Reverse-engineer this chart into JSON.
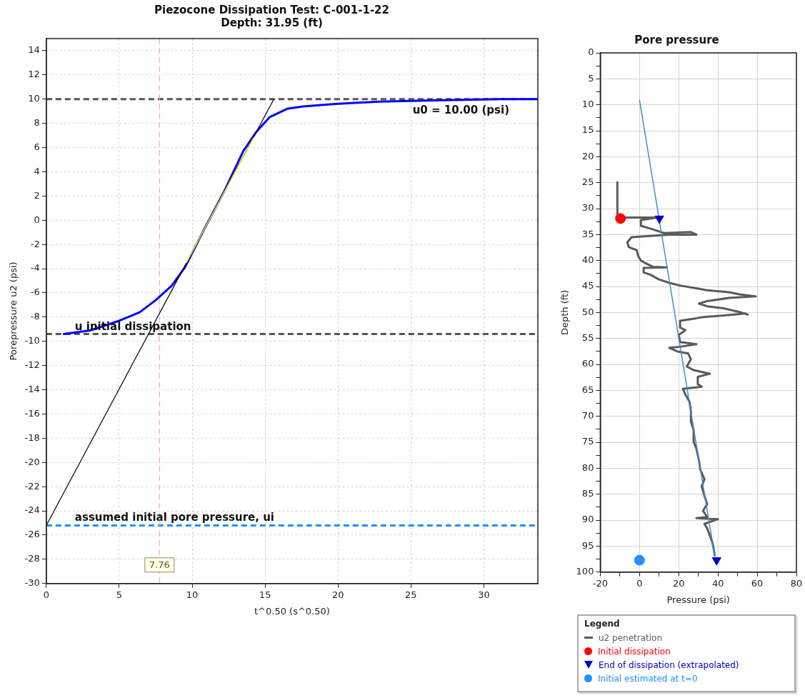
{
  "chart_data": [
    {
      "type": "line",
      "title": "Piezocone Dissipation Test: C-001-1-22",
      "subtitle": "Depth: 31.95 (ft)",
      "xlabel": "t^0.50 (s^0.50)",
      "ylabel": "Porepressure u2 (psi)",
      "xlim": [
        0,
        33.7
      ],
      "xticks": [
        0,
        5,
        10,
        15,
        20,
        25,
        30
      ],
      "ylim": [
        -30,
        15
      ],
      "yticks": [
        -30,
        -28,
        -26,
        -24,
        -22,
        -20,
        -18,
        -16,
        -14,
        -12,
        -10,
        -8,
        -6,
        -4,
        -2,
        0,
        2,
        4,
        6,
        8,
        10,
        12,
        14
      ],
      "grid": true,
      "marker": "none",
      "series": [
        {
          "color": "#0000ff",
          "x": [
            1.2,
            3.0,
            5.0,
            6.4,
            7.5,
            8.6,
            9.5,
            10.8,
            12.2,
            13.5,
            14.4,
            15.3,
            16.5,
            17.6,
            19.8,
            22.8,
            26.6,
            31.1,
            33.7
          ],
          "values": [
            -9.4,
            -9.1,
            -8.3,
            -7.6,
            -6.6,
            -5.4,
            -3.9,
            -0.8,
            2.4,
            5.7,
            7.3,
            8.5,
            9.2,
            9.4,
            9.6,
            9.8,
            9.9,
            10.0,
            10.0
          ]
        },
        {
          "color": "#000000",
          "x": [
            0,
            15.6
          ],
          "values": [
            -25.2,
            10.0
          ]
        },
        {
          "color": "#e6e600",
          "x": [
            9.6,
            14.2
          ],
          "values": [
            -3.5,
            6.8
          ]
        }
      ],
      "ref_lines": [
        {
          "axis": "y",
          "value": 10,
          "label": "u0 = 10.00 (psi)",
          "color": "#555555",
          "line_style": "dashed"
        },
        {
          "axis": "y",
          "value": -9.4,
          "label": "u initial dissipation",
          "color": "#555555",
          "line_style": "dashed"
        },
        {
          "axis": "y",
          "value": -25.2,
          "label": "assumed initial pore pressure, ui",
          "color": "#1e90ff",
          "line_style": "dashed"
        },
        {
          "axis": "x",
          "value": 7.76,
          "label": "7.76",
          "color": "#e8a0a0",
          "line_style": "dashed"
        }
      ]
    },
    {
      "type": "line",
      "title": "Pore pressure",
      "xlabel": "Pressure (psi)",
      "ylabel": "Depth (ft)",
      "legend": "bottom",
      "legend_title": "Legend",
      "xlim": [
        -20,
        80
      ],
      "xticks": [
        -20,
        {
          "value": -10,
          "label": null
        },
        0,
        {
          "value": 10,
          "label": null
        },
        20,
        {
          "value": 30,
          "label": null
        },
        40,
        {
          "value": 50,
          "label": null
        },
        60,
        {
          "value": 70,
          "label": null
        },
        80
      ],
      "ylim": [
        100,
        0
      ],
      "yticks": [
        0,
        {
          "value": 2.5,
          "label": null
        },
        5,
        {
          "value": 7.5,
          "label": null
        },
        10,
        {
          "value": 12.5,
          "label": null
        },
        15,
        {
          "value": 17.5,
          "label": null
        },
        20,
        {
          "value": 22.5,
          "label": null
        },
        25,
        {
          "value": 27.5,
          "label": null
        },
        30,
        {
          "value": 32.5,
          "label": null
        },
        35,
        {
          "value": 37.5,
          "label": null
        },
        40,
        {
          "value": 42.5,
          "label": null
        },
        45,
        {
          "value": 47.5,
          "label": null
        },
        50,
        {
          "value": 52.5,
          "label": null
        },
        55,
        {
          "value": 57.5,
          "label": null
        },
        60,
        {
          "value": 62.5,
          "label": null
        },
        65,
        {
          "value": 67.5,
          "label": null
        },
        70,
        {
          "value": 72.5,
          "label": null
        },
        75,
        {
          "value": 77.5,
          "label": null
        },
        80,
        {
          "value": 82.5,
          "label": null
        },
        85,
        {
          "value": 87.5,
          "label": null
        },
        90,
        {
          "value": 92.5,
          "label": null
        },
        95,
        {
          "value": 97.5,
          "label": null
        },
        100
      ],
      "grid": true,
      "series": [
        {
          "name": "u2 penetration",
          "color": "#5a5a5a",
          "marker": "none",
          "x": [
            -11.3,
            -11.3,
            9.0,
            0.7,
            0.7,
            6.9,
            12.4,
            26.2,
            29.0,
            15.2,
            -4.1,
            -6.2,
            -5.5,
            -1.4,
            -0.7,
            0.7,
            4.1,
            6.9,
            13.8,
            2.1,
            2.1,
            5.5,
            9.7,
            15.2,
            20.7,
            34.5,
            45.5,
            51.0,
            59.3,
            45.5,
            34.5,
            30.3,
            34.5,
            42.8,
            51.0,
            55.2,
            53.8,
            45.5,
            31.7,
            29.0,
            20.7,
            20.7,
            23.4,
            20.0,
            20.7,
            29.0,
            20.7,
            15.2,
            19.3,
            24.8,
            26.2,
            24.1,
            27.6,
            35.9,
            29.7,
            29.7,
            31.7,
            22.1,
            23.4,
            25.5,
            26.2,
            26.2,
            27.6,
            27.6,
            29.0,
            30.3,
            31.0,
            33.1,
            31.7,
            33.1,
            34.5,
            32.4,
            34.5,
            29.0,
            40.0,
            33.1,
            34.5,
            35.9,
            37.2,
            37.9,
            38.3
          ],
          "values": [
            24.9,
            31.7,
            31.7,
            32.2,
            33.3,
            34.0,
            34.7,
            34.5,
            35.0,
            35.0,
            35.5,
            36.5,
            37.4,
            38.0,
            39.1,
            40.0,
            40.7,
            41.2,
            41.3,
            41.4,
            42.3,
            42.7,
            43.6,
            44.3,
            44.8,
            45.7,
            46.1,
            46.5,
            46.9,
            47.2,
            47.8,
            48.3,
            48.8,
            49.2,
            49.9,
            50.4,
            50.2,
            50.5,
            50.9,
            51.1,
            51.6,
            52.9,
            53.4,
            54.3,
            55.7,
            56.1,
            56.6,
            56.8,
            57.5,
            57.9,
            59.0,
            60.4,
            61.1,
            61.8,
            62.4,
            63.8,
            64.3,
            64.7,
            65.8,
            67.2,
            69.0,
            71.0,
            72.6,
            74.9,
            76.2,
            78.5,
            80.3,
            82.1,
            83.5,
            85.3,
            86.9,
            88.2,
            89.4,
            89.6,
            89.8,
            90.7,
            91.6,
            93.0,
            94.3,
            95.7,
            96.8
          ]
        },
        {
          "color": "#3a8fd9",
          "marker": "none",
          "x": [
            0,
            38.3
          ],
          "values": [
            9.1,
            96.8
          ]
        },
        {
          "name": "Initial dissipation",
          "type": "scatter",
          "color": "#ff0000",
          "marker": "circle",
          "x": [
            -9.7
          ],
          "values": [
            31.9
          ]
        },
        {
          "name": "End of dissipation (extrapolated)",
          "type": "scatter",
          "color": "#0000cc",
          "marker": "triangle",
          "x": [
            10.1,
            39.3
          ],
          "values": [
            31.9,
            97.7
          ]
        },
        {
          "name": "Initial estimated at t=0",
          "type": "scatter",
          "color": "#1e90ff",
          "marker": "circle",
          "x": [
            0
          ],
          "values": [
            97.7
          ]
        }
      ]
    }
  ]
}
